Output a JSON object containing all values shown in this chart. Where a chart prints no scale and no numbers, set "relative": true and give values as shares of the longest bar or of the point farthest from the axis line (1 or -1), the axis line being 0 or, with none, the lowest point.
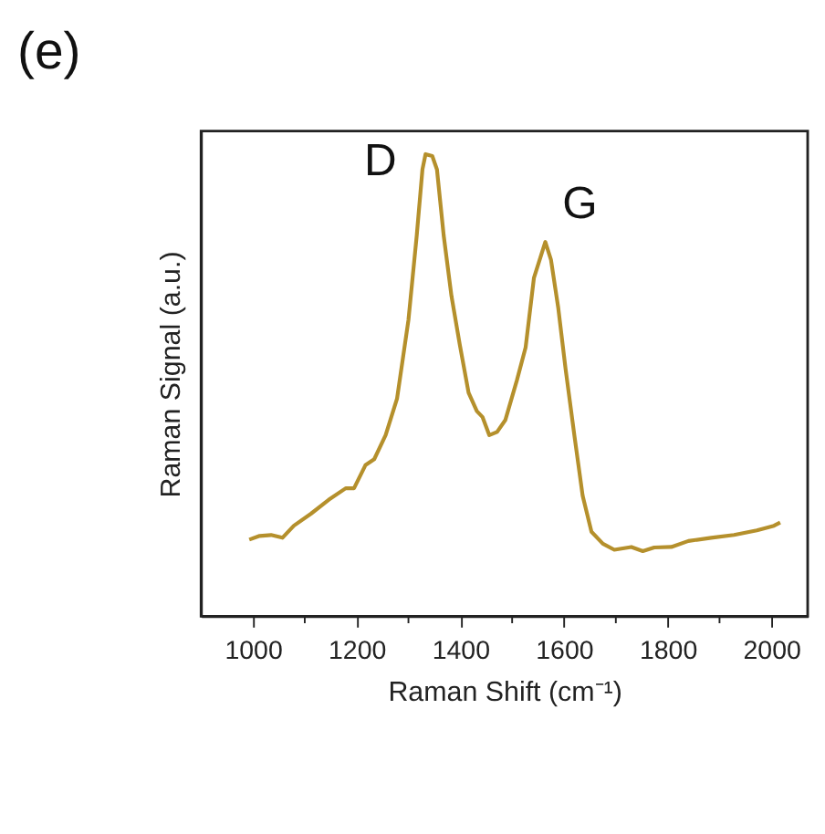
{
  "chart_data": {
    "type": "line",
    "title": "(e)",
    "xlabel": "Raman Shift (cm⁻¹)",
    "ylabel": "Raman Signal (a.u.)",
    "relative": true,
    "grid": false,
    "marker": "none",
    "line_style": "solid",
    "xlim": [
      900,
      2070
    ],
    "xticks": [
      1000,
      {
        "value": 1100,
        "label": null
      },
      1200,
      {
        "value": 1300,
        "label": null
      },
      1400,
      {
        "value": 1500,
        "label": null
      },
      1600,
      {
        "value": 1700,
        "label": null
      },
      1800,
      {
        "value": 1900,
        "label": null
      },
      2000
    ],
    "x": [
      993,
      1013,
      1035,
      1057,
      1079,
      1112,
      1146,
      1179,
      1195,
      1217,
      1234,
      1256,
      1278,
      1300,
      1316,
      1327,
      1333,
      1346,
      1355,
      1368,
      1383,
      1399,
      1416,
      1432,
      1443,
      1456,
      1471,
      1487,
      1509,
      1526,
      1542,
      1553,
      1564,
      1575,
      1589,
      1603,
      1620,
      1636,
      1653,
      1675,
      1697,
      1730,
      1752,
      1774,
      1807,
      1840,
      1884,
      1928,
      1972,
      2005,
      2017
    ],
    "series": [
      {
        "color": "#b5902c",
        "values": [
          0.166,
          0.174,
          0.176,
          0.17,
          0.196,
          0.222,
          0.252,
          0.277,
          0.277,
          0.327,
          0.34,
          0.392,
          0.471,
          0.641,
          0.824,
          0.967,
          1,
          0.996,
          0.967,
          0.824,
          0.693,
          0.588,
          0.484,
          0.444,
          0.431,
          0.392,
          0.399,
          0.425,
          0.51,
          0.582,
          0.732,
          0.771,
          0.81,
          0.771,
          0.667,
          0.536,
          0.392,
          0.261,
          0.183,
          0.157,
          0.144,
          0.15,
          0.141,
          0.149,
          0.15,
          0.163,
          0.17,
          0.176,
          0.186,
          0.196,
          0.203
        ]
      }
    ],
    "annotations": [
      {
        "text": "D",
        "x": 1333,
        "y": 1
      },
      {
        "text": "G",
        "x": 1564,
        "y": 0.81
      }
    ]
  }
}
